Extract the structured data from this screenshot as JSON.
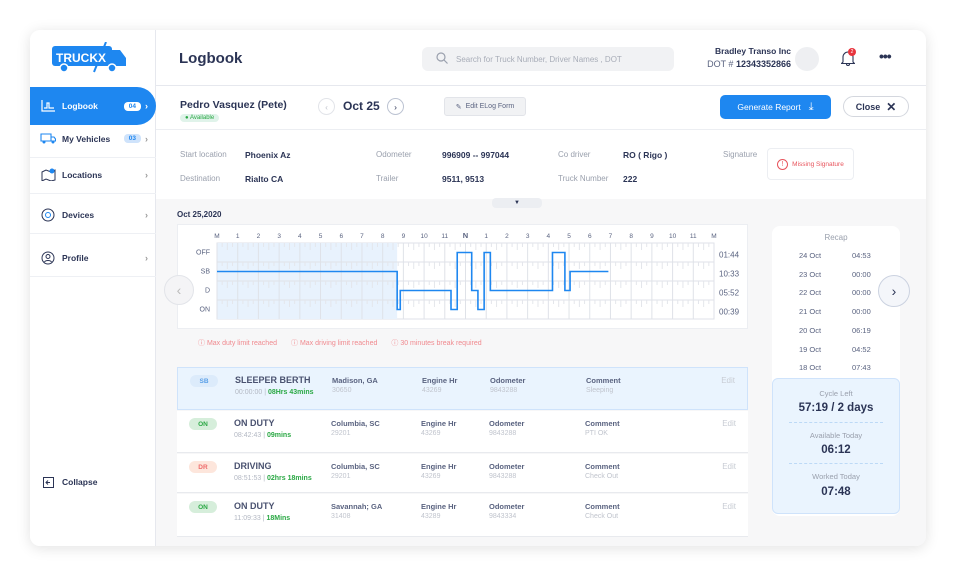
{
  "sidebar": {
    "logo": "TRUCKX",
    "items": [
      {
        "label": "Logbook",
        "badge": "04",
        "active": true
      },
      {
        "label": "My Vehicles",
        "badge": "03"
      },
      {
        "label": "Locations"
      },
      {
        "label": "Devices"
      },
      {
        "label": "Profile"
      }
    ],
    "collapse": "Collapse"
  },
  "header": {
    "title": "Logbook",
    "search_placeholder": "Search for Truck Number, Driver Names , DOT",
    "company": "Bradley Transo Inc",
    "dot_label": "DOT #",
    "dot": "12343352866",
    "notif_count": "2"
  },
  "driver": {
    "name": "Pedro Vasquez (Pete)",
    "status": "Available",
    "date": "Oct 25",
    "edit_btn": "Edit ELog Form",
    "report_btn": "Generate Report",
    "close_btn": "Close"
  },
  "info": {
    "start_label": "Start location",
    "start": "Phoenix Az",
    "dest_label": "Destination",
    "dest": "Rialto CA",
    "odo_label": "Odometer",
    "odo": "996909 -- 997044",
    "trailer_label": "Trailer",
    "trailer": "9511, 9513",
    "codriver_label": "Co driver",
    "codriver": "RO ( Rigo )",
    "truck_label": "Truck Number",
    "truck": "222",
    "sig_label": "Signature",
    "sig": "Missing Signature"
  },
  "chart_data": {
    "type": "line",
    "title": "Oct 25,2020",
    "hours": [
      "M",
      "1",
      "2",
      "3",
      "4",
      "5",
      "6",
      "7",
      "8",
      "9",
      "10",
      "11",
      "N",
      "1",
      "2",
      "3",
      "4",
      "5",
      "6",
      "7",
      "8",
      "9",
      "10",
      "11",
      "M"
    ],
    "statuses": [
      "OFF",
      "SB",
      "D",
      "ON"
    ],
    "totals": [
      "01:44",
      "10:33",
      "05:52",
      "00:39"
    ],
    "segments": [
      {
        "s": "SB",
        "from": 0,
        "to": 8.7
      },
      {
        "s": "ON",
        "from": 8.7,
        "to": 8.85
      },
      {
        "s": "D",
        "from": 8.85,
        "to": 11.3
      },
      {
        "s": "ON",
        "from": 11.3,
        "to": 11.6
      },
      {
        "s": "OFF",
        "from": 11.6,
        "to": 12.3
      },
      {
        "s": "D",
        "from": 12.3,
        "to": 12.6
      },
      {
        "s": "ON",
        "from": 12.6,
        "to": 12.9
      },
      {
        "s": "OFF",
        "from": 12.9,
        "to": 13.2
      },
      {
        "s": "D",
        "from": 13.2,
        "to": 16.2
      },
      {
        "s": "OFF",
        "from": 16.2,
        "to": 16.8
      },
      {
        "s": "D",
        "from": 16.8,
        "to": 17.05
      },
      {
        "s": "SB",
        "from": 17.05,
        "to": 18.9
      }
    ],
    "highlight_until": 8.7,
    "line_color": "#1e87f0"
  },
  "warnings": [
    "Max duty limit reached",
    "Max driving limit reached",
    "30 minutes break required"
  ],
  "events": [
    {
      "code": "SB",
      "status": "SLEEPER BERTH",
      "time": "00:00:00",
      "dur": "08Hrs 43mins",
      "city": "Madison, GA",
      "zip": "30650",
      "eng_label": "Engine Hr",
      "eng": "43269",
      "odo_label": "Odometer",
      "odo": "9843288",
      "com_label": "Comment",
      "com": "Sleeping",
      "edit": "Edit"
    },
    {
      "code": "ON",
      "status": "ON DUTY",
      "time": "08:42:43",
      "dur": "09mins",
      "city": "Columbia, SC",
      "zip": "29201",
      "eng_label": "Engine Hr",
      "eng": "43269",
      "odo_label": "Odometer",
      "odo": "9843288",
      "com_label": "Comment",
      "com": "PTI OK",
      "edit": "Edit"
    },
    {
      "code": "DR",
      "status": "DRIVING",
      "time": "08:51:53",
      "dur": "02hrs 18mins",
      "city": "Columbia, SC",
      "zip": "29201",
      "eng_label": "Engine Hr",
      "eng": "43269",
      "odo_label": "Odometer",
      "odo": "9843288",
      "com_label": "Comment",
      "com": "Check Out",
      "edit": "Edit"
    },
    {
      "code": "ON",
      "status": "ON DUTY",
      "time": "11:09:33",
      "dur": "18Mins",
      "city": "Savannah; GA",
      "zip": "31408",
      "eng_label": "Engine Hr",
      "eng": "43289",
      "odo_label": "Odometer",
      "odo": "9843334",
      "com_label": "Comment",
      "com": "Check Out",
      "edit": "Edit"
    }
  ],
  "recap": {
    "title": "Recap",
    "rows": [
      [
        "24 Oct",
        "04:53"
      ],
      [
        "23 Oct",
        "00:00"
      ],
      [
        "22 Oct",
        "00:00"
      ],
      [
        "21 Oct",
        "00:00"
      ],
      [
        "20 Oct",
        "06:19"
      ],
      [
        "19 Oct",
        "04:52"
      ],
      [
        "18 Oct",
        "07:43"
      ]
    ],
    "cycle_label": "Cycle Left",
    "cycle": "57:19 / 2 days",
    "avail_label": "Available Today",
    "avail": "06:12",
    "worked_label": "Worked Today",
    "worked": "07:48"
  }
}
